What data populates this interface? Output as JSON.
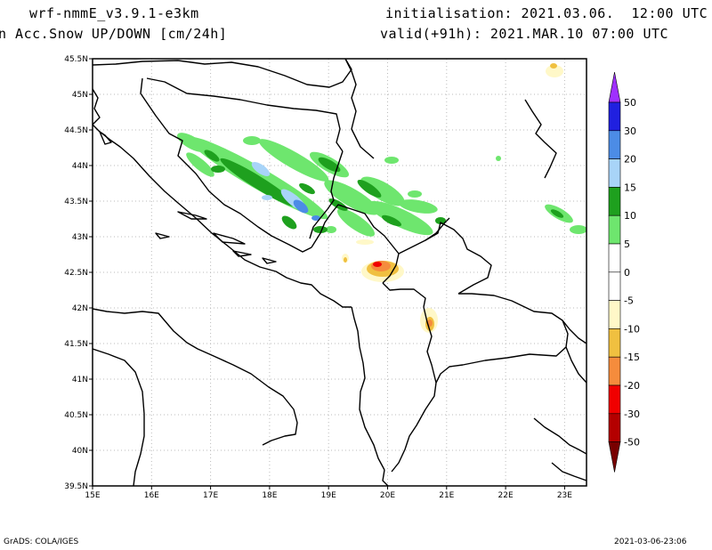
{
  "header": {
    "model": "wrf-nmmE_v3.9.1-e3km",
    "field": "n Acc.Snow UP/DOWN [cm/24h]",
    "init": "initialisation: 2021.03.06.  12:00 UTC",
    "valid": "valid(+91h): 2021.MAR.10 07:00 UTC"
  },
  "footer": {
    "credit": "GrADS: COLA/IGES",
    "timestamp": "2021-03-06-23:06"
  },
  "map": {
    "lat_labels": [
      "45.5N",
      "45N",
      "44.5N",
      "44N",
      "43.5N",
      "43N",
      "42.5N",
      "42N",
      "41.5N",
      "41N",
      "40.5N",
      "40N",
      "39.5N"
    ],
    "lon_labels": [
      "15E",
      "16E",
      "17E",
      "18E",
      "19E",
      "20E",
      "21E",
      "22E",
      "23E"
    ]
  },
  "colorbar": {
    "labels": [
      "50",
      "30",
      "20",
      "15",
      "10",
      "5",
      "0",
      "-5",
      "-10",
      "-15",
      "-20",
      "-30",
      "-50"
    ],
    "colors": [
      "#2020e0",
      "#4c8ce6",
      "#a8d4f8",
      "#1ea01e",
      "#6ee66e",
      "#ffffff",
      "#ffffff",
      "#fff8c8",
      "#f0c040",
      "#f58c3c",
      "#f00000",
      "#b40000"
    ],
    "cap_top_color": "#9f30ff",
    "cap_bottom_color": "#780000"
  }
}
